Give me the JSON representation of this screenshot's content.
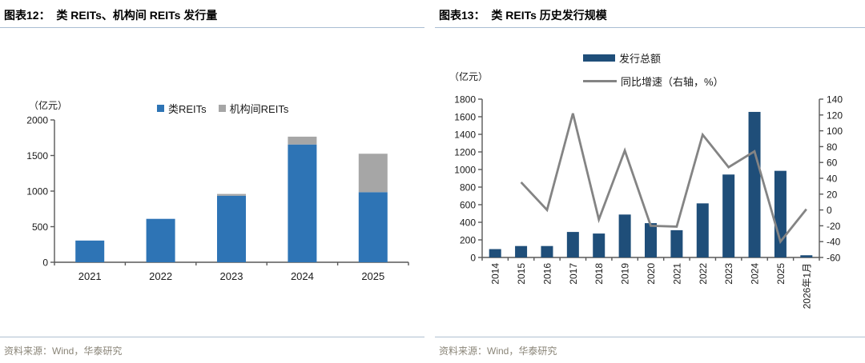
{
  "panels": [
    {
      "title": "图表12：  类 REITs、机构间 REITs 发行量",
      "source": "资料来源：Wind，华泰研究"
    },
    {
      "title": "图表13：  类 REITs 历史发行规模",
      "source": "资料来源：Wind，华泰研究"
    }
  ],
  "chart_data": [
    {
      "type": "bar",
      "subtype": "stacked-column",
      "unit": "（亿元）",
      "categories": [
        "2021",
        "2022",
        "2023",
        "2024",
        "2025"
      ],
      "series": [
        {
          "name": "类REITs",
          "color": "#2E74B5",
          "values": [
            305,
            610,
            935,
            1655,
            985
          ]
        },
        {
          "name": "机构间REITs",
          "color": "#A6A6A6",
          "values": [
            0,
            0,
            25,
            110,
            540
          ]
        }
      ],
      "ylim": [
        0,
        2000
      ],
      "ytick_step": 500,
      "legend_position": "top",
      "grid": false
    },
    {
      "type": "bar",
      "subtype": "column-plus-line-dual-axis",
      "unit": "（亿元）",
      "categories": [
        "2014",
        "2015",
        "2016",
        "2017",
        "2018",
        "2019",
        "2020",
        "2021",
        "2022",
        "2023",
        "2024",
        "2025",
        "2026年1月"
      ],
      "bars": {
        "name": "发行总额",
        "color": "#1F4E79",
        "axis": "left",
        "values": [
          95,
          130,
          130,
          290,
          272,
          488,
          390,
          310,
          615,
          943,
          1655,
          985,
          25
        ]
      },
      "line": {
        "name": "同比增速（右轴，%）",
        "color": "#848484",
        "axis": "right",
        "values": [
          null,
          35,
          0,
          122,
          -12,
          75,
          -20,
          -21,
          95,
          54,
          74,
          -40,
          1
        ]
      },
      "ylim_left": [
        0,
        1800
      ],
      "ytick_step_left": 200,
      "ylim_right": [
        -60,
        140
      ],
      "ytick_step_right": 20,
      "legend_position": "top",
      "grid": false
    }
  ],
  "colors": {
    "axis": "#595959",
    "tick_text": "#1a1a1a",
    "title_rule": "#A9BDD3",
    "source_text": "#8A8578"
  }
}
